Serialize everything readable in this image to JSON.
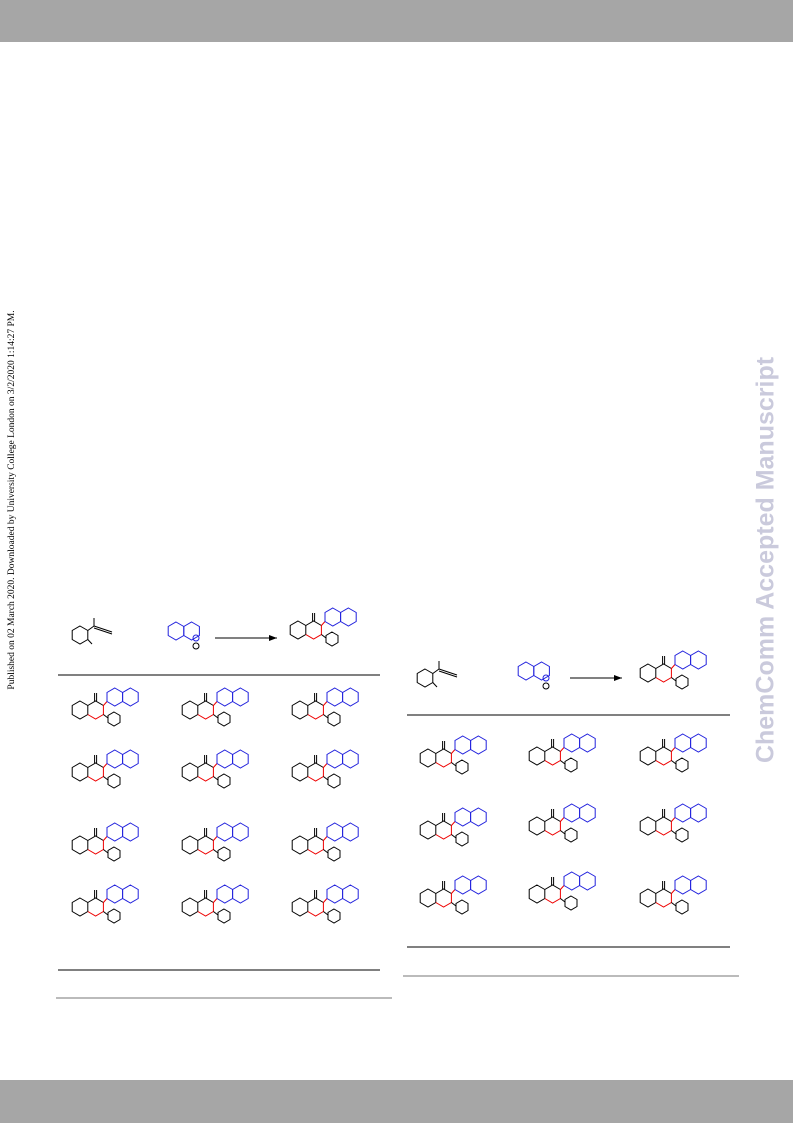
{
  "sidebar": {
    "text": "Published on 02 March 2020. Downloaded by University College London on 3/2/2020 1:14:27 PM."
  },
  "watermark": {
    "text": "ChemComm Accepted Manuscript"
  }
}
